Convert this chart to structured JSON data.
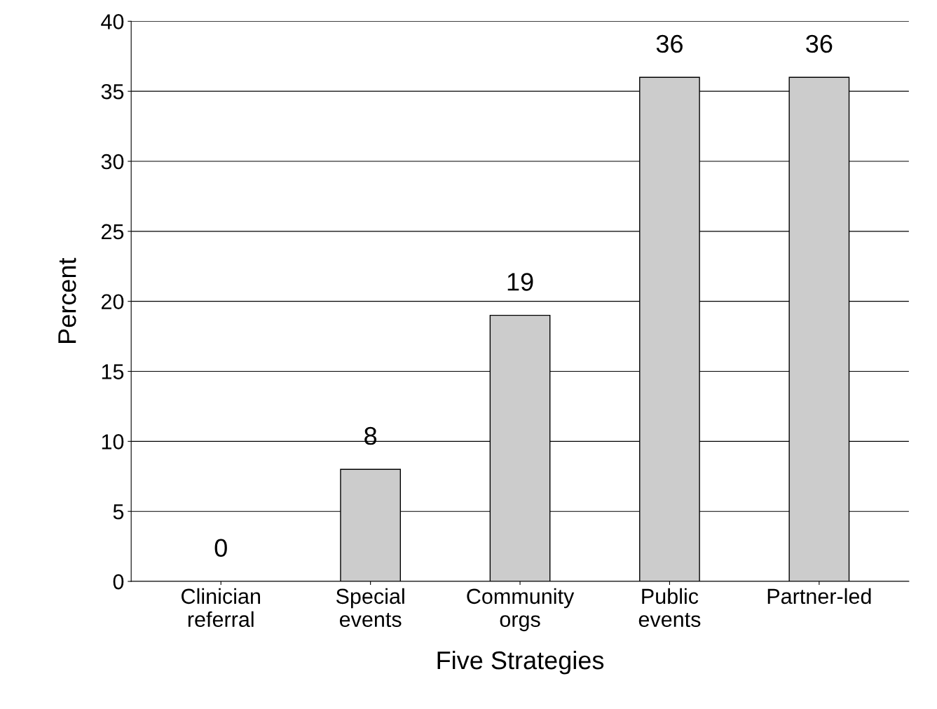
{
  "chart_data": {
    "type": "bar",
    "xlabel": "Five Strategies",
    "ylabel": "Percent",
    "categories": [
      "Clinician\nreferral",
      "Special\nevents",
      "Community\norgs",
      "Public\nevents",
      "Partner-led"
    ],
    "values": [
      0,
      8,
      19,
      36,
      36
    ],
    "color": "#cccccc",
    "ylim": [
      0,
      40
    ],
    "yticks": [
      0,
      5,
      10,
      15,
      20,
      25,
      30,
      35,
      40
    ],
    "grid": "y",
    "data_labels": true,
    "legend": false
  }
}
